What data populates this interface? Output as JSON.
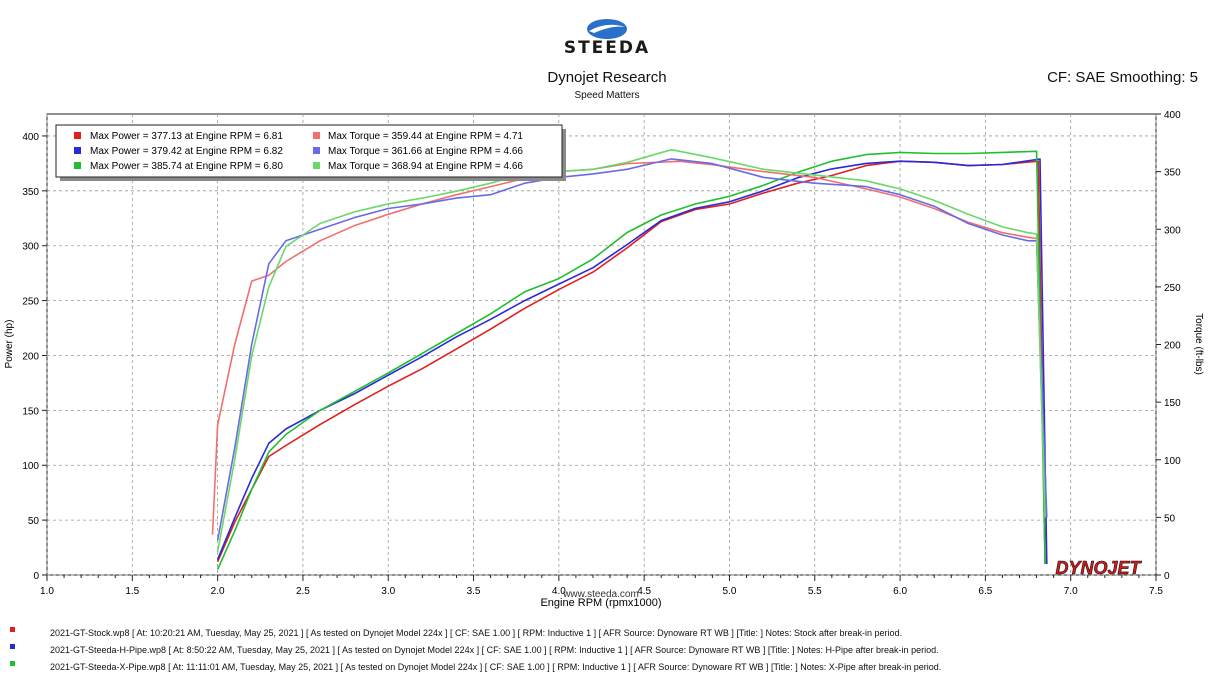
{
  "header": {
    "brand": "STEEDA",
    "title": "Dynojet Research",
    "subtitle": "Speed Matters",
    "cf_label": "CF: SAE Smoothing: 5",
    "watermark": "www.steeda.com",
    "dynojet_logo": "DYNOJET"
  },
  "colors": {
    "red": "#e02020",
    "blue": "#2a2ad8",
    "green": "#1fbf2f",
    "red_light": "#f07070",
    "blue_light": "#6a6ae8",
    "green_light": "#6ad86a"
  },
  "legend": {
    "rows": [
      {
        "power": "Max Power = 377.13 at Engine RPM = 6.81",
        "torque": "Max Torque = 359.44 at Engine RPM = 4.71"
      },
      {
        "power": "Max Power = 379.42 at Engine RPM = 6.82",
        "torque": "Max Torque = 361.66 at Engine RPM = 4.66"
      },
      {
        "power": "Max Power = 385.74 at Engine RPM = 6.80",
        "torque": "Max Torque = 368.94 at Engine RPM = 4.66"
      }
    ]
  },
  "footer": [
    "2021-GT-Stock.wp8 [ At: 10:20:21 AM, Tuesday, May 25, 2021 ] [ As tested on Dynojet Model 224x ] [ CF: SAE 1.00 ] [ RPM: Inductive 1 ] [ AFR Source: Dynoware RT WB ] [Title: ] Notes: Stock after break-in period.",
    "2021-GT-Steeda-H-Pipe.wp8 [ At: 8:50:22 AM, Tuesday, May 25, 2021 ] [ As tested on Dynojet Model 224x ] [ CF: SAE 1.00 ] [ RPM: Inductive 1 ] [ AFR Source: Dynoware RT WB ] [Title: ] Notes: H-Pipe after break-in period.",
    "2021-GT-Steeda-X-Pipe.wp8 [ At: 11:11:01 AM, Tuesday, May 25, 2021 ] [ As tested on Dynojet Model 224x ] [ CF: SAE 1.00 ] [ RPM: Inductive 1 ] [ AFR Source: Dynoware RT WB ] [Title: ] Notes: X-Pipe after break-in period."
  ],
  "chart_data": {
    "type": "line",
    "xlabel": "Engine RPM (rpmx1000)",
    "ylabel": "Power (hp)",
    "y2label": "Torque (ft-lbs)",
    "xlim": [
      1.0,
      7.5
    ],
    "ylim": [
      0,
      420
    ],
    "y2lim": [
      0,
      400
    ],
    "x_ticks": [
      "1.0",
      "1.5",
      "2.0",
      "2.5",
      "3.0",
      "3.5",
      "4.0",
      "4.5",
      "5.0",
      "5.5",
      "6.0",
      "6.5",
      "7.0",
      "7.5"
    ],
    "y_ticks": [
      "0",
      "50",
      "100",
      "150",
      "200",
      "250",
      "300",
      "350",
      "400"
    ],
    "y2_ticks": [
      "0",
      "50",
      "100",
      "150",
      "200",
      "250",
      "300",
      "350",
      "400"
    ],
    "grid": true,
    "legend_position": "top-left",
    "series": [
      {
        "name": "2021-GT-Stock power",
        "axis": "left",
        "color": "red",
        "x": [
          2.0,
          2.1,
          2.2,
          2.3,
          2.4,
          2.6,
          2.8,
          3.0,
          3.2,
          3.4,
          3.6,
          3.8,
          4.0,
          4.2,
          4.4,
          4.6,
          4.8,
          5.0,
          5.2,
          5.4,
          5.6,
          5.8,
          6.0,
          6.2,
          6.4,
          6.6,
          6.81,
          6.85
        ],
        "y": [
          12,
          48,
          78,
          108,
          118,
          137,
          155,
          172,
          188,
          206,
          224,
          243,
          260,
          276,
          298,
          322,
          333,
          338,
          348,
          357,
          364,
          373,
          377,
          376,
          373,
          374,
          377,
          10
        ]
      },
      {
        "name": "2021-GT-Steeda-H-Pipe power",
        "axis": "left",
        "color": "blue",
        "x": [
          2.0,
          2.1,
          2.2,
          2.3,
          2.4,
          2.6,
          2.8,
          3.0,
          3.2,
          3.4,
          3.6,
          3.8,
          4.0,
          4.2,
          4.4,
          4.6,
          4.8,
          5.0,
          5.2,
          5.4,
          5.6,
          5.8,
          6.0,
          6.2,
          6.4,
          6.6,
          6.82,
          6.86
        ],
        "y": [
          14,
          52,
          88,
          120,
          133,
          150,
          165,
          182,
          199,
          217,
          233,
          250,
          265,
          280,
          301,
          323,
          334,
          340,
          350,
          362,
          370,
          375,
          377,
          376,
          373,
          374,
          379,
          10
        ]
      },
      {
        "name": "2021-GT-Steeda-X-Pipe power",
        "axis": "left",
        "color": "green",
        "x": [
          2.0,
          2.1,
          2.2,
          2.3,
          2.4,
          2.6,
          2.8,
          3.0,
          3.2,
          3.4,
          3.6,
          3.8,
          4.0,
          4.2,
          4.4,
          4.6,
          4.8,
          5.0,
          5.2,
          5.4,
          5.6,
          5.8,
          6.0,
          6.2,
          6.4,
          6.6,
          6.8,
          6.85
        ],
        "y": [
          5,
          40,
          78,
          112,
          128,
          150,
          167,
          184,
          202,
          220,
          238,
          258,
          270,
          288,
          312,
          328,
          338,
          345,
          355,
          367,
          377,
          383,
          385,
          384,
          384,
          385,
          386,
          10
        ]
      },
      {
        "name": "2021-GT-Stock torque",
        "axis": "right",
        "color": "red_light",
        "x": [
          1.97,
          2.0,
          2.1,
          2.2,
          2.3,
          2.4,
          2.6,
          2.8,
          3.0,
          3.2,
          3.4,
          3.6,
          3.8,
          4.0,
          4.2,
          4.4,
          4.71,
          4.9,
          5.2,
          5.5,
          5.8,
          6.0,
          6.2,
          6.4,
          6.6,
          6.75,
          6.8,
          6.85
        ],
        "y": [
          35,
          130,
          200,
          255,
          260,
          272,
          290,
          303,
          313,
          322,
          330,
          337,
          344,
          350,
          352,
          357,
          359,
          356,
          350,
          345,
          335,
          328,
          318,
          306,
          297,
          293,
          292,
          50
        ]
      },
      {
        "name": "2021-GT-Steeda-H-Pipe torque",
        "axis": "right",
        "color": "blue_light",
        "x": [
          2.0,
          2.1,
          2.2,
          2.3,
          2.4,
          2.6,
          2.8,
          3.0,
          3.2,
          3.4,
          3.6,
          3.8,
          4.0,
          4.2,
          4.4,
          4.66,
          4.9,
          5.2,
          5.5,
          5.8,
          6.0,
          6.2,
          6.4,
          6.6,
          6.75,
          6.8,
          6.86
        ],
        "y": [
          30,
          110,
          200,
          270,
          290,
          300,
          310,
          318,
          322,
          327,
          330,
          340,
          345,
          348,
          352,
          361,
          357,
          345,
          340,
          337,
          330,
          320,
          305,
          295,
          290,
          290,
          50
        ]
      },
      {
        "name": "2021-GT-Steeda-X-Pipe torque",
        "axis": "right",
        "color": "green_light",
        "x": [
          2.0,
          2.1,
          2.2,
          2.3,
          2.4,
          2.6,
          2.8,
          3.0,
          3.2,
          3.4,
          3.6,
          3.8,
          4.0,
          4.2,
          4.4,
          4.66,
          4.9,
          5.2,
          5.5,
          5.8,
          6.0,
          6.2,
          6.4,
          6.6,
          6.75,
          6.8,
          6.85
        ],
        "y": [
          20,
          100,
          190,
          250,
          285,
          305,
          315,
          322,
          327,
          333,
          340,
          348,
          350,
          352,
          358,
          369,
          362,
          352,
          347,
          342,
          335,
          325,
          313,
          302,
          297,
          296,
          50
        ]
      }
    ]
  }
}
